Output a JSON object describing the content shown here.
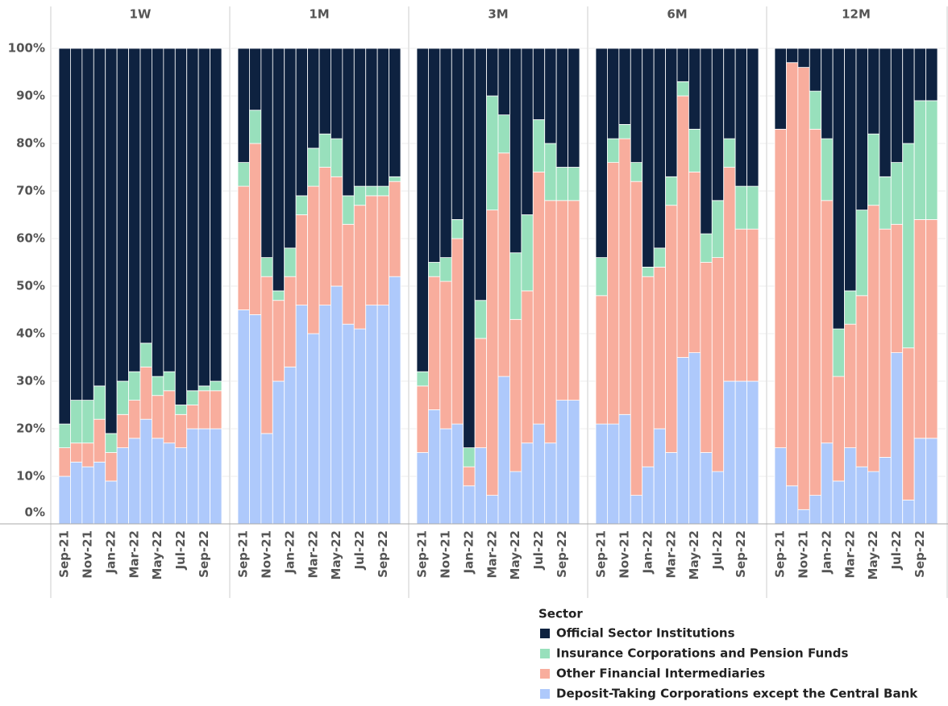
{
  "chart_data": [
    {
      "type": "bar",
      "stacked": true,
      "title": "1W",
      "legend_title": "Sector",
      "categories": [
        "Sep-21",
        null,
        "Nov-21",
        null,
        "Jan-22",
        null,
        "Mar-22",
        null,
        "May-22",
        null,
        "Jul-22",
        null,
        "Sep-22",
        null
      ],
      "ylim": [
        0,
        100
      ],
      "yticks": [
        {
          "value": 0,
          "label": "0%"
        },
        {
          "value": 10,
          "label": "10%"
        },
        {
          "value": 20,
          "label": "20%"
        },
        {
          "value": 30,
          "label": "30%"
        },
        {
          "value": 40,
          "label": "40%"
        },
        {
          "value": 50,
          "label": "50%"
        },
        {
          "value": 60,
          "label": "60%"
        },
        {
          "value": 70,
          "label": "70%"
        },
        {
          "value": 80,
          "label": "80%"
        },
        {
          "value": 90,
          "label": "90%"
        },
        {
          "value": 100,
          "label": "100%"
        }
      ],
      "grid": true,
      "series": [
        {
          "name": "Deposit-Taking Corporations except the Central Bank",
          "color": "#aec9fb",
          "values": [
            10,
            13,
            12,
            13,
            9,
            16,
            18,
            22,
            18,
            17,
            16,
            20,
            20,
            20
          ]
        },
        {
          "name": "Other Financial Intermediaries",
          "color": "#f8ad9d",
          "values": [
            6,
            4,
            5,
            9,
            6,
            7,
            8,
            11,
            9,
            11,
            7,
            5,
            8,
            8
          ]
        },
        {
          "name": "Insurance Corporations and Pension Funds",
          "color": "#98e0bc",
          "values": [
            5,
            9,
            9,
            7,
            4,
            7,
            6,
            5,
            4,
            4,
            2,
            3,
            1,
            2
          ]
        },
        {
          "name": "Official Sector Institutions",
          "color": "#0e2240",
          "values": [
            79,
            74,
            74,
            71,
            81,
            70,
            68,
            62,
            69,
            68,
            75,
            72,
            71,
            70
          ]
        }
      ]
    },
    {
      "type": "bar",
      "stacked": true,
      "title": "1M",
      "categories": [
        "Sep-21",
        null,
        "Nov-21",
        null,
        "Jan-22",
        null,
        "Mar-22",
        null,
        "May-22",
        null,
        "Jul-22",
        null,
        "Sep-22",
        null
      ],
      "ylim": [
        0,
        100
      ],
      "series": [
        {
          "name": "Deposit-Taking Corporations except the Central Bank",
          "color": "#aec9fb",
          "values": [
            45,
            44,
            19,
            30,
            33,
            46,
            40,
            46,
            50,
            42,
            41,
            46,
            46,
            52
          ]
        },
        {
          "name": "Other Financial Intermediaries",
          "color": "#f8ad9d",
          "values": [
            26,
            36,
            33,
            17,
            19,
            19,
            31,
            29,
            23,
            21,
            26,
            23,
            23,
            20
          ]
        },
        {
          "name": "Insurance Corporations and Pension Funds",
          "color": "#98e0bc",
          "values": [
            5,
            7,
            4,
            2,
            6,
            4,
            8,
            7,
            8,
            6,
            4,
            2,
            2,
            1
          ]
        },
        {
          "name": "Official Sector Institutions",
          "color": "#0e2240",
          "values": [
            24,
            13,
            44,
            51,
            42,
            31,
            21,
            18,
            19,
            31,
            29,
            29,
            29,
            27
          ]
        }
      ]
    },
    {
      "type": "bar",
      "stacked": true,
      "title": "3M",
      "categories": [
        "Sep-21",
        null,
        "Nov-21",
        null,
        "Jan-22",
        null,
        "Mar-22",
        null,
        "May-22",
        null,
        "Jul-22",
        null,
        "Sep-22",
        null
      ],
      "ylim": [
        0,
        100
      ],
      "series": [
        {
          "name": "Deposit-Taking Corporations except the Central Bank",
          "color": "#aec9fb",
          "values": [
            15,
            24,
            20,
            21,
            8,
            16,
            6,
            31,
            11,
            17,
            21,
            17,
            26,
            26
          ]
        },
        {
          "name": "Other Financial Intermediaries",
          "color": "#f8ad9d",
          "values": [
            14,
            28,
            31,
            39,
            4,
            23,
            60,
            47,
            32,
            32,
            53,
            51,
            42,
            42
          ]
        },
        {
          "name": "Insurance Corporations and Pension Funds",
          "color": "#98e0bc",
          "values": [
            3,
            3,
            5,
            4,
            4,
            8,
            24,
            8,
            14,
            16,
            11,
            12,
            7,
            7
          ]
        },
        {
          "name": "Official Sector Institutions",
          "color": "#0e2240",
          "values": [
            68,
            45,
            44,
            36,
            84,
            53,
            10,
            14,
            43,
            35,
            15,
            20,
            25,
            25
          ]
        }
      ]
    },
    {
      "type": "bar",
      "stacked": true,
      "title": "6M",
      "categories": [
        "Sep-21",
        null,
        "Nov-21",
        null,
        "Jan-22",
        null,
        "Mar-22",
        null,
        "May-22",
        null,
        "Jul-22",
        null,
        "Sep-22",
        null
      ],
      "ylim": [
        0,
        100
      ],
      "series": [
        {
          "name": "Deposit-Taking Corporations except the Central Bank",
          "color": "#aec9fb",
          "values": [
            21,
            21,
            23,
            6,
            12,
            20,
            15,
            35,
            36,
            15,
            11,
            30,
            30,
            30
          ]
        },
        {
          "name": "Other Financial Intermediaries",
          "color": "#f8ad9d",
          "values": [
            27,
            55,
            58,
            66,
            40,
            34,
            52,
            55,
            38,
            40,
            45,
            45,
            32,
            32
          ]
        },
        {
          "name": "Insurance Corporations and Pension Funds",
          "color": "#98e0bc",
          "values": [
            8,
            5,
            3,
            4,
            2,
            4,
            6,
            3,
            9,
            6,
            12,
            6,
            9,
            9
          ]
        },
        {
          "name": "Official Sector Institutions",
          "color": "#0e2240",
          "values": [
            44,
            19,
            16,
            24,
            46,
            42,
            27,
            7,
            17,
            39,
            32,
            19,
            29,
            29
          ]
        }
      ]
    },
    {
      "type": "bar",
      "stacked": true,
      "title": "12M",
      "categories": [
        "Sep-21",
        null,
        "Nov-21",
        null,
        "Jan-22",
        null,
        "Mar-22",
        null,
        "May-22",
        null,
        "Jul-22",
        null,
        "Sep-22",
        null
      ],
      "ylim": [
        0,
        100
      ],
      "series": [
        {
          "name": "Deposit-Taking Corporations except the Central Bank",
          "color": "#aec9fb",
          "values": [
            16,
            8,
            3,
            6,
            17,
            9,
            16,
            12,
            11,
            14,
            36,
            5,
            18,
            18
          ]
        },
        {
          "name": "Other Financial Intermediaries",
          "color": "#f8ad9d",
          "values": [
            67,
            89,
            93,
            77,
            51,
            22,
            26,
            36,
            56,
            48,
            27,
            32,
            46,
            46
          ]
        },
        {
          "name": "Insurance Corporations and Pension Funds",
          "color": "#98e0bc",
          "values": [
            0,
            0,
            0,
            8,
            13,
            10,
            7,
            18,
            15,
            11,
            13,
            43,
            25,
            25
          ]
        },
        {
          "name": "Official Sector Institutions",
          "color": "#0e2240",
          "values": [
            17,
            3,
            4,
            9,
            19,
            59,
            51,
            34,
            18,
            27,
            24,
            20,
            11,
            11
          ]
        }
      ]
    }
  ]
}
